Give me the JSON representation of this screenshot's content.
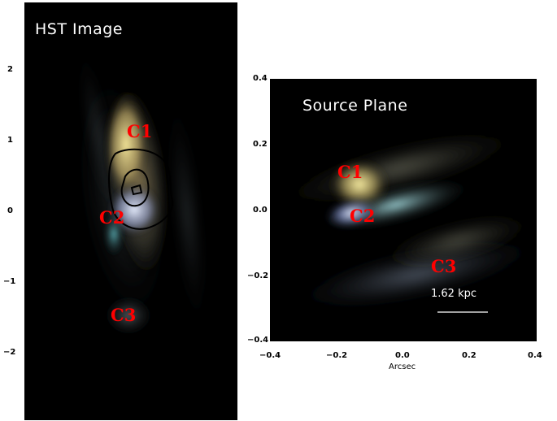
{
  "left_panel": {
    "title": "HST Image",
    "clumps": [
      "C1",
      "C2",
      "C3"
    ],
    "y_ticks": [
      "2",
      "1",
      "0",
      "−1",
      "−2"
    ]
  },
  "right_panel": {
    "title": "Source Plane",
    "clumps": [
      "C1",
      "C2",
      "C3"
    ],
    "scale_bar_label": "1.62 kpc",
    "x_ticks": [
      "−0.4",
      "−0.2",
      "0.0",
      "0.2",
      "0.4"
    ],
    "y_ticks": [
      "0.4",
      "0.2",
      "0.0",
      "−0.2",
      "−0.4"
    ],
    "x_label": "Arcsec"
  },
  "colors": {
    "clump_label": "#ff0000",
    "contour": "#000000",
    "background": "#000000"
  }
}
